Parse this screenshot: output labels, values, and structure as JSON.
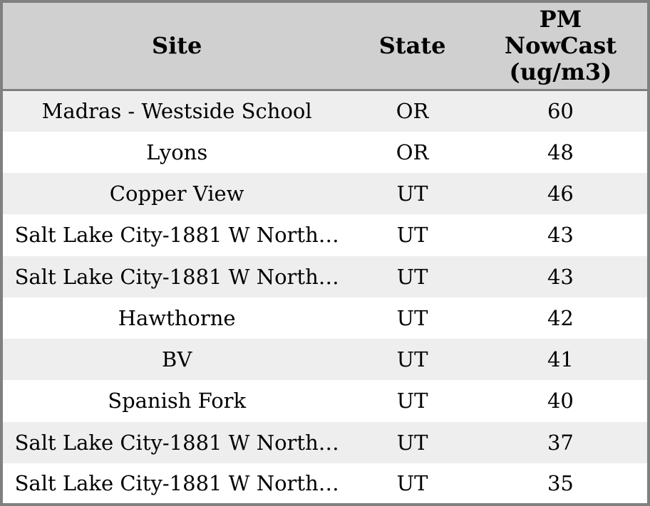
{
  "chart_data": {
    "type": "table",
    "title": "",
    "columns": [
      "Site",
      "State",
      "PM\nNowCast\n(ug/m3)"
    ],
    "rows": [
      {
        "site": "Madras - Westside School",
        "state": "OR",
        "pm": 60
      },
      {
        "site": "Lyons",
        "state": "OR",
        "pm": 48
      },
      {
        "site": "Copper View",
        "state": "UT",
        "pm": 46
      },
      {
        "site": "Salt Lake City-1881 W North…",
        "state": "UT",
        "pm": 43
      },
      {
        "site": "Salt Lake City-1881 W North…",
        "state": "UT",
        "pm": 43
      },
      {
        "site": "Hawthorne",
        "state": "UT",
        "pm": 42
      },
      {
        "site": "BV",
        "state": "UT",
        "pm": 41
      },
      {
        "site": "Spanish Fork",
        "state": "UT",
        "pm": 40
      },
      {
        "site": "Salt Lake City-1881 W North…",
        "state": "UT",
        "pm": 37
      },
      {
        "site": "Salt Lake City-1881 W North…",
        "state": "UT",
        "pm": 35
      }
    ],
    "layout": {
      "header_lines_pm_column": 3,
      "row_striping": "odd rows shaded",
      "gridlines": "none inside body, heavy outer frame and header rule"
    },
    "colors": {
      "header_bg": "#d0d0d0",
      "row_stripe_bg": "#eeeeee",
      "row_plain_bg": "#ffffff",
      "border": "#808080",
      "text": "#000000"
    }
  }
}
